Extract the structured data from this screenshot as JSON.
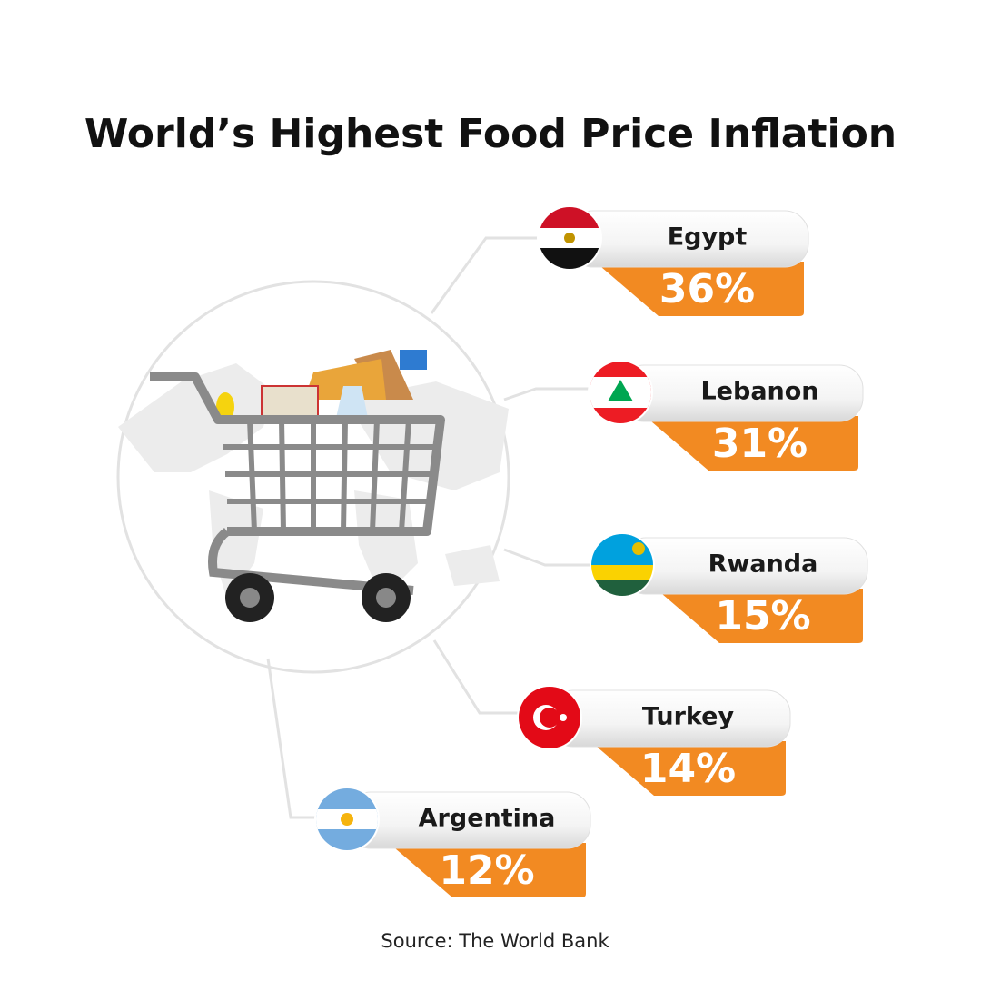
{
  "title": "World’s Highest Food Price Inflation",
  "items": [
    {
      "country": "Egypt",
      "value": "36%"
    },
    {
      "country": "Lebanon",
      "value": "31%"
    },
    {
      "country": "Rwanda",
      "value": "15%"
    },
    {
      "country": "Turkey",
      "value": "14%"
    },
    {
      "country": "Argentina",
      "value": "12%"
    }
  ],
  "source": "Source: The World Bank"
}
